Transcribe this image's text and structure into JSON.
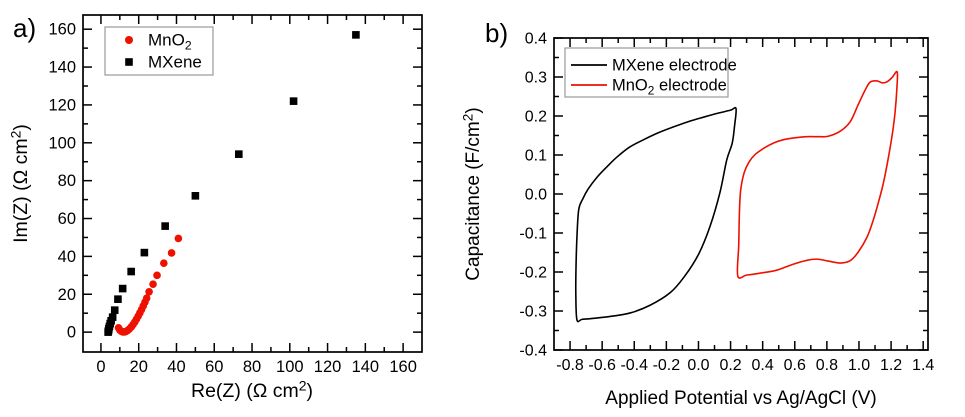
{
  "figure": {
    "background": "#ffffff",
    "panel_labels": [
      "a)",
      "b)"
    ],
    "accent_red": "#ee1100",
    "accent_black": "#000000"
  },
  "chart_data": [
    {
      "type": "scatter",
      "panel_label": "a)",
      "title": "",
      "xlabel": "Re(Z) (Ω cm²)",
      "ylabel": "Im(Z) (Ω cm²)",
      "xlabel_segments": [
        {
          "t": "Re(Z) (Ω cm"
        },
        {
          "t": "2",
          "sup": true
        },
        {
          "t": ")"
        }
      ],
      "ylabel_segments": [
        {
          "t": "Im(Z) (Ω cm"
        },
        {
          "t": "2",
          "sup": true
        },
        {
          "t": ")"
        }
      ],
      "xlim": [
        -9.5,
        170
      ],
      "ylim": [
        -10.5,
        167.5
      ],
      "grid": false,
      "x_tick_values": [
        0,
        20,
        40,
        60,
        80,
        100,
        120,
        140,
        160
      ],
      "x_tick_labels": [
        "0",
        "20",
        "40",
        "60",
        "80",
        "100",
        "120",
        "140",
        "160"
      ],
      "y_tick_values": [
        0,
        20,
        40,
        60,
        80,
        100,
        120,
        140,
        160
      ],
      "y_tick_labels": [
        "0",
        "20",
        "40",
        "60",
        "80",
        "100",
        "120",
        "140",
        "160"
      ],
      "x_minor_step": 10,
      "y_minor_step": 10,
      "legend": {
        "position": "top-left-inside",
        "entries": [
          {
            "label": "MnO₂",
            "label_segments": [
              {
                "t": "MnO"
              },
              {
                "t": "2",
                "sub": true
              }
            ],
            "marker": "circle",
            "color": "#ee1100"
          },
          {
            "label": "MXene",
            "label_segments": [
              {
                "t": "MXene"
              }
            ],
            "marker": "square",
            "color": "#000000"
          }
        ]
      },
      "series": [
        {
          "name": "MXene",
          "marker": "square",
          "color": "#000000",
          "points": [
            [
              3.8,
              0.0
            ],
            [
              4.0,
              0.8
            ],
            [
              4.2,
              1.8
            ],
            [
              4.5,
              3.0
            ],
            [
              4.9,
              4.5
            ],
            [
              5.4,
              6.0
            ],
            [
              6.2,
              7.9
            ],
            [
              7.3,
              11.6
            ],
            [
              9.0,
              17.4
            ],
            [
              11.5,
              23.0
            ],
            [
              16.0,
              32.0
            ],
            [
              23.0,
              42.0
            ],
            [
              34.0,
              56.0
            ],
            [
              50.0,
              72.0
            ],
            [
              73.0,
              94.0
            ],
            [
              102.0,
              122.0
            ],
            [
              135.0,
              157.0
            ]
          ]
        },
        {
          "name": "MnO2",
          "marker": "circle",
          "color": "#ee1100",
          "points": [
            [
              9.3,
              2.3
            ],
            [
              10.0,
              1.1
            ],
            [
              10.8,
              0.4
            ],
            [
              11.6,
              0.1
            ],
            [
              12.5,
              0.1
            ],
            [
              13.4,
              0.4
            ],
            [
              14.3,
              1.0
            ],
            [
              15.2,
              1.8
            ],
            [
              16.1,
              2.8
            ],
            [
              17.0,
              4.0
            ],
            [
              17.9,
              5.3
            ],
            [
              18.8,
              6.8
            ],
            [
              19.7,
              8.4
            ],
            [
              20.6,
              10.1
            ],
            [
              21.5,
              11.9
            ],
            [
              22.4,
              13.8
            ],
            [
              23.3,
              15.8
            ],
            [
              24.2,
              17.9
            ],
            [
              25.5,
              21.3
            ],
            [
              27.6,
              25.3
            ],
            [
              29.7,
              30.0
            ],
            [
              33.3,
              36.4
            ],
            [
              37.4,
              41.8
            ],
            [
              41.0,
              49.5
            ]
          ]
        }
      ]
    },
    {
      "type": "line",
      "panel_label": "b)",
      "title": "",
      "xlabel": "Applied Potential vs Ag/AgCl (V)",
      "ylabel": "Capacitance (F/cm²)",
      "xlabel_segments": [
        {
          "t": "Applied Potential vs Ag/AgCl (V)"
        }
      ],
      "ylabel_segments": [
        {
          "t": "Capacitance (F/cm"
        },
        {
          "t": "2",
          "sup": true
        },
        {
          "t": ")"
        }
      ],
      "xlim": [
        -0.9,
        1.43
      ],
      "ylim": [
        -0.4,
        0.4
      ],
      "grid": false,
      "x_tick_values": [
        -0.8,
        -0.6,
        -0.4,
        -0.2,
        0.0,
        0.2,
        0.4,
        0.6,
        0.8,
        1.0,
        1.2,
        1.4
      ],
      "x_tick_labels": [
        "-0.8",
        "-0.6",
        "-0.4",
        "-0.2",
        "0.0",
        "0.2",
        "0.4",
        "0.6",
        "0.8",
        "1.0",
        "1.2",
        "1.4"
      ],
      "y_tick_values": [
        -0.4,
        -0.3,
        -0.2,
        -0.1,
        0.0,
        0.1,
        0.2,
        0.3,
        0.4
      ],
      "y_tick_labels": [
        "-0.4",
        "-0.3",
        "-0.2",
        "-0.1",
        "0.0",
        "0.1",
        "0.2",
        "0.3",
        "0.4"
      ],
      "x_minor_step": 0.1,
      "y_minor_step": 0.05,
      "legend": {
        "position": "top-left-inside",
        "entries": [
          {
            "label": "MXene electrode",
            "label_segments": [
              {
                "t": "MXene electrode"
              }
            ],
            "line": true,
            "color": "#000000"
          },
          {
            "label": "MnO₂ electrode",
            "label_segments": [
              {
                "t": "MnO"
              },
              {
                "t": "2",
                "sub": true
              },
              {
                "t": " electrode"
              }
            ],
            "line": true,
            "color": "#ee1100"
          }
        ]
      },
      "series": [
        {
          "name": "MXene electrode",
          "color": "#000000",
          "closed": true,
          "points": [
            [
              -0.757,
              -0.323
            ],
            [
              -0.764,
              -0.26
            ],
            [
              -0.763,
              -0.19
            ],
            [
              -0.757,
              -0.11
            ],
            [
              -0.746,
              -0.04
            ],
            [
              -0.72,
              -0.012
            ],
            [
              -0.687,
              0.013
            ],
            [
              -0.63,
              0.044
            ],
            [
              -0.565,
              0.072
            ],
            [
              -0.507,
              0.095
            ],
            [
              -0.43,
              0.12
            ],
            [
              -0.343,
              0.139
            ],
            [
              -0.25,
              0.157
            ],
            [
              -0.156,
              0.172
            ],
            [
              -0.06,
              0.186
            ],
            [
              0.031,
              0.197
            ],
            [
              0.12,
              0.207
            ],
            [
              0.2,
              0.215
            ],
            [
              0.234,
              0.219
            ],
            [
              0.225,
              0.175
            ],
            [
              0.21,
              0.13
            ],
            [
              0.176,
              0.087
            ],
            [
              0.134,
              0.004
            ],
            [
              0.072,
              -0.083
            ],
            [
              0.0,
              -0.155
            ],
            [
              -0.09,
              -0.213
            ],
            [
              -0.176,
              -0.253
            ],
            [
              -0.3,
              -0.285
            ],
            [
              -0.425,
              -0.305
            ],
            [
              -0.55,
              -0.314
            ],
            [
              -0.66,
              -0.319
            ],
            [
              -0.726,
              -0.3215
            ]
          ]
        },
        {
          "name": "MnO2 electrode",
          "color": "#ee1100",
          "closed": true,
          "points": [
            [
              0.245,
              -0.21
            ],
            [
              0.251,
              -0.13
            ],
            [
              0.255,
              -0.05
            ],
            [
              0.263,
              0.01
            ],
            [
              0.285,
              0.055
            ],
            [
              0.315,
              0.082
            ],
            [
              0.355,
              0.102
            ],
            [
              0.41,
              0.118
            ],
            [
              0.47,
              0.131
            ],
            [
              0.527,
              0.139
            ],
            [
              0.6,
              0.144
            ],
            [
              0.677,
              0.147
            ],
            [
              0.75,
              0.147
            ],
            [
              0.808,
              0.148
            ],
            [
              0.883,
              0.161
            ],
            [
              0.945,
              0.185
            ],
            [
              0.995,
              0.229
            ],
            [
              1.039,
              0.267
            ],
            [
              1.07,
              0.287
            ],
            [
              1.113,
              0.29
            ],
            [
              1.145,
              0.285
            ],
            [
              1.176,
              0.288
            ],
            [
              1.207,
              0.299
            ],
            [
              1.238,
              0.313
            ],
            [
              1.236,
              0.27
            ],
            [
              1.225,
              0.21
            ],
            [
              1.21,
              0.16
            ],
            [
              1.184,
              0.095
            ],
            [
              1.152,
              0.028
            ],
            [
              1.12,
              -0.023
            ],
            [
              1.089,
              -0.067
            ],
            [
              1.051,
              -0.11
            ],
            [
              0.995,
              -0.149
            ],
            [
              0.945,
              -0.171
            ],
            [
              0.883,
              -0.177
            ],
            [
              0.808,
              -0.172
            ],
            [
              0.739,
              -0.167
            ],
            [
              0.677,
              -0.17
            ],
            [
              0.59,
              -0.18
            ],
            [
              0.49,
              -0.195
            ],
            [
              0.384,
              -0.203
            ],
            [
              0.3,
              -0.208
            ]
          ]
        }
      ]
    }
  ]
}
